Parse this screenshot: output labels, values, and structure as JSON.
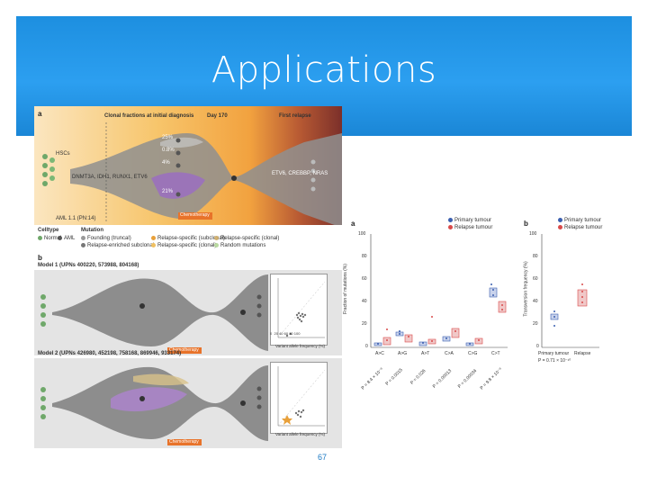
{
  "slide": {
    "title": "Applications",
    "page_number": "67",
    "header_color": "#2196e6"
  },
  "left_figure": {
    "panel_a": {
      "label": "a",
      "timepoints": [
        "Clonal fractions at initial diagnosis",
        "Day 170",
        "First relapse"
      ],
      "hsc_label": "HSCs",
      "mutations_line": "DNMT3A, IDH1, RUNX1, ETV6",
      "clone_percents": [
        "25%",
        "0.8%",
        "4%",
        "<1%",
        "21%"
      ],
      "relapse_note": "ETV6, CREBBP, NRAS",
      "aml_label": "AML 1.1 (PN:14)",
      "chemo_label": "Chemotherapy"
    },
    "legend": {
      "celltype_title": "Celltype",
      "celltype_items": [
        "Normal",
        "AML"
      ],
      "mutation_title": "Mutation",
      "mutation_items": [
        "Founding (truncal)",
        "Relapse-enriched subclonal",
        "Relapse-specific (subclonal)",
        "Relapse-specific (clonal)",
        "Relapse-specific (clonal)",
        "Random mutations"
      ]
    },
    "panel_b": {
      "label": "b",
      "model1_title": "Model 1 (UPNs 400220, 573988, 804168)",
      "model2_title": "Model 2 (UPNs 426980, 452198, 758168, 869946, 933174)",
      "chemo_label": "Chemotherapy",
      "scatter_xlabel": "Variant allele frequency (%)",
      "scatter_ylabel": "Relapse variant allele frequency (%)",
      "scatter_ticks": [
        "0",
        "20",
        "40",
        "60",
        "80",
        "100"
      ]
    }
  },
  "right_figure": {
    "panel_a": {
      "label": "a",
      "legend": [
        "Primary tumour",
        "Relapse tumour"
      ],
      "ylabel": "Fraction of mutations (%)",
      "yticks": [
        "100",
        "80",
        "60",
        "40",
        "20",
        "0"
      ],
      "categories": [
        "A>C",
        "A>G",
        "A>T",
        "C>A",
        "C>G",
        "C>T"
      ],
      "pvalues": [
        "P = 8.4 × 10⁻⁸",
        "P = 0.0015",
        "P = 0.026",
        "P = 0.00013",
        "P = 0.00034",
        "P = 9.8 × 10⁻⁸"
      ]
    },
    "panel_b": {
      "label": "b",
      "legend": [
        "Primary tumour",
        "Relapse tumour"
      ],
      "ylabel": "Transversion frequency (%)",
      "yticks": [
        "100",
        "80",
        "60",
        "40",
        "20",
        "0"
      ],
      "categories": [
        "Primary tumour",
        "Relapse"
      ],
      "pvalue": "P = 0.71 × 10⁻¹⁰"
    },
    "colors": {
      "primary": "#3b5fb0",
      "relapse": "#d94a4a"
    }
  }
}
